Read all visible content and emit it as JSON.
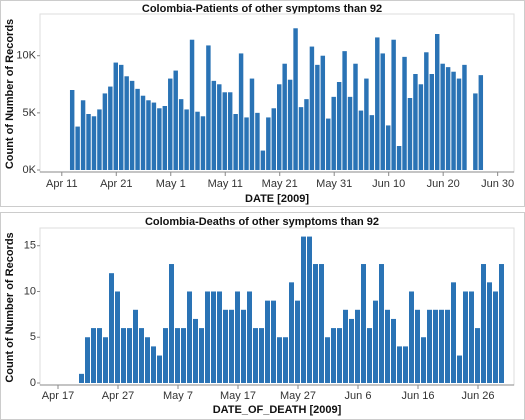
{
  "chart_data": [
    {
      "type": "bar",
      "title": "Colombia-Patients of other symptoms than 92",
      "x_label": "DATE [2009]",
      "y_label": "Count of Number of Records",
      "color": "#2a73b5",
      "x": [
        "2009-04-13",
        "2009-04-14",
        "2009-04-15",
        "2009-04-16",
        "2009-04-17",
        "2009-04-18",
        "2009-04-19",
        "2009-04-20",
        "2009-04-21",
        "2009-04-22",
        "2009-04-23",
        "2009-04-24",
        "2009-04-25",
        "2009-04-26",
        "2009-04-27",
        "2009-04-28",
        "2009-04-29",
        "2009-04-30",
        "2009-05-01",
        "2009-05-02",
        "2009-05-03",
        "2009-05-04",
        "2009-05-05",
        "2009-05-06",
        "2009-05-07",
        "2009-05-08",
        "2009-05-09",
        "2009-05-10",
        "2009-05-11",
        "2009-05-12",
        "2009-05-13",
        "2009-05-14",
        "2009-05-15",
        "2009-05-16",
        "2009-05-17",
        "2009-05-18",
        "2009-05-19",
        "2009-05-20",
        "2009-05-21",
        "2009-05-22",
        "2009-05-23",
        "2009-05-24",
        "2009-05-25",
        "2009-05-26",
        "2009-05-27",
        "2009-05-28",
        "2009-05-29",
        "2009-05-30",
        "2009-05-31",
        "2009-06-01",
        "2009-06-02",
        "2009-06-03",
        "2009-06-04",
        "2009-06-05",
        "2009-06-06",
        "2009-06-07",
        "2009-06-08",
        "2009-06-09",
        "2009-06-10",
        "2009-06-11",
        "2009-06-12",
        "2009-06-13",
        "2009-06-14",
        "2009-06-15",
        "2009-06-16",
        "2009-06-17",
        "2009-06-18",
        "2009-06-19",
        "2009-06-20",
        "2009-06-21",
        "2009-06-22",
        "2009-06-23",
        "2009-06-24",
        "2009-06-26",
        "2009-06-27"
      ],
      "values": [
        7000,
        3800,
        6100,
        4900,
        4700,
        5300,
        6700,
        7300,
        9400,
        9200,
        8200,
        7800,
        7100,
        6500,
        6100,
        5900,
        5400,
        5600,
        8000,
        8700,
        6200,
        5300,
        11400,
        5100,
        4700,
        10900,
        7800,
        7500,
        6800,
        6800,
        4900,
        10200,
        4600,
        8000,
        5000,
        1700,
        4600,
        5400,
        7500,
        9300,
        7900,
        12400,
        5500,
        6200,
        10800,
        9200,
        10000,
        4500,
        6400,
        7700,
        10400,
        6400,
        9300,
        5200,
        8000,
        4800,
        11600,
        10200,
        3900,
        11400,
        2100,
        9900,
        6300,
        8400,
        7500,
        10300,
        8400,
        11900,
        9300,
        9000,
        8600,
        8000,
        9200,
        6700,
        8300
      ],
      "xlim": [
        "2009-04-07",
        "2009-07-03"
      ],
      "xticks": [
        {
          "value": "2009-04-11",
          "label": "Apr 11"
        },
        {
          "value": "2009-04-21",
          "label": "Apr 21"
        },
        {
          "value": "2009-05-01",
          "label": "May 1"
        },
        {
          "value": "2009-05-11",
          "label": "May 11"
        },
        {
          "value": "2009-05-21",
          "label": "May 21"
        },
        {
          "value": "2009-05-31",
          "label": "May 31"
        },
        {
          "value": "2009-06-10",
          "label": "Jun 10"
        },
        {
          "value": "2009-06-20",
          "label": "Jun 20"
        },
        {
          "value": "2009-06-30",
          "label": "Jun 30"
        }
      ],
      "ylim": [
        0,
        13300
      ],
      "yticks": [
        {
          "value": 0,
          "label": "0K"
        },
        {
          "value": 5000,
          "label": "5K"
        },
        {
          "value": 10000,
          "label": "10K"
        }
      ]
    },
    {
      "type": "bar",
      "title": "Colombia-Deaths of other symptoms than 92",
      "x_label": "DATE_OF_DEATH [2009]",
      "y_label": "Count of Number of Records",
      "color": "#2a73b5",
      "x": [
        "2009-04-21",
        "2009-04-22",
        "2009-04-23",
        "2009-04-24",
        "2009-04-25",
        "2009-04-26",
        "2009-04-27",
        "2009-04-28",
        "2009-04-29",
        "2009-04-30",
        "2009-05-01",
        "2009-05-02",
        "2009-05-03",
        "2009-05-04",
        "2009-05-05",
        "2009-05-06",
        "2009-05-07",
        "2009-05-08",
        "2009-05-09",
        "2009-05-10",
        "2009-05-11",
        "2009-05-12",
        "2009-05-13",
        "2009-05-14",
        "2009-05-15",
        "2009-05-16",
        "2009-05-17",
        "2009-05-18",
        "2009-05-19",
        "2009-05-20",
        "2009-05-21",
        "2009-05-22",
        "2009-05-23",
        "2009-05-24",
        "2009-05-25",
        "2009-05-26",
        "2009-05-27",
        "2009-05-28",
        "2009-05-29",
        "2009-05-30",
        "2009-05-31",
        "2009-06-01",
        "2009-06-02",
        "2009-06-03",
        "2009-06-04",
        "2009-06-05",
        "2009-06-06",
        "2009-06-07",
        "2009-06-08",
        "2009-06-09",
        "2009-06-10",
        "2009-06-11",
        "2009-06-12",
        "2009-06-13",
        "2009-06-14",
        "2009-06-15",
        "2009-06-16",
        "2009-06-17",
        "2009-06-18",
        "2009-06-19",
        "2009-06-20",
        "2009-06-21",
        "2009-06-22",
        "2009-06-23",
        "2009-06-24",
        "2009-06-25",
        "2009-06-26",
        "2009-06-27",
        "2009-06-28",
        "2009-06-29",
        "2009-06-30"
      ],
      "values": [
        1,
        5,
        6,
        6,
        5,
        12,
        10,
        6,
        6,
        8,
        6,
        5,
        4,
        3,
        6,
        13,
        6,
        6,
        10,
        7,
        6,
        10,
        10,
        10,
        8,
        8,
        10,
        8,
        10,
        6,
        6,
        9,
        9,
        5,
        5,
        11,
        9,
        16,
        16,
        13,
        13,
        5,
        6,
        6,
        8,
        7,
        8,
        13,
        6,
        9,
        13,
        8,
        7,
        4,
        4,
        10,
        8,
        5,
        8,
        8,
        8,
        8,
        11,
        3,
        10,
        10,
        6,
        13,
        11,
        10,
        13
      ],
      "xlim": [
        "2009-04-14",
        "2009-07-02"
      ],
      "xticks": [
        {
          "value": "2009-04-17",
          "label": "Apr 17"
        },
        {
          "value": "2009-04-27",
          "label": "Apr 27"
        },
        {
          "value": "2009-05-07",
          "label": "May 7"
        },
        {
          "value": "2009-05-17",
          "label": "May 17"
        },
        {
          "value": "2009-05-27",
          "label": "May 27"
        },
        {
          "value": "2009-06-06",
          "label": "Jun 6"
        },
        {
          "value": "2009-06-16",
          "label": "Jun 16"
        },
        {
          "value": "2009-06-26",
          "label": "Jun 26"
        }
      ],
      "ylim": [
        0,
        16.5
      ],
      "yticks": [
        0,
        5,
        10,
        15
      ]
    }
  ]
}
